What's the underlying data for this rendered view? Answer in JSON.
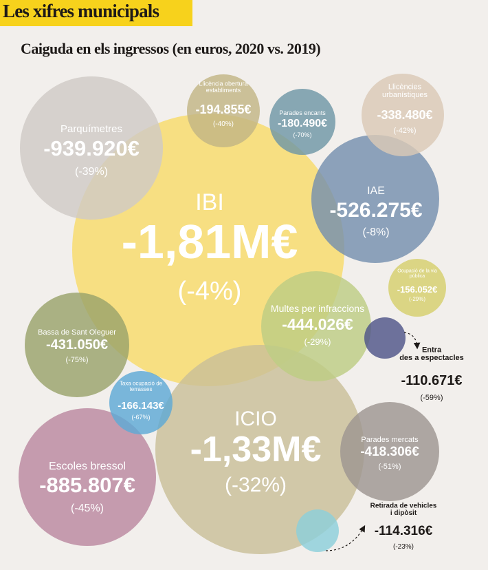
{
  "header": {
    "title": "Les xifres municipals",
    "accent": "#f7d21c"
  },
  "chart_data": {
    "type": "bubble",
    "title": "Caiguda en els ingressos (en euros, 2020 vs. 2019)",
    "series": [
      {
        "name": "IBI",
        "value": "-1,81M€",
        "change": "(-4%)",
        "color": "#f8dc6a",
        "text": "#ffffff"
      },
      {
        "name": "ICIO",
        "value": "-1,33M€",
        "change": "(-32%)",
        "color": "#c9bf98",
        "text": "#ffffff"
      },
      {
        "name": "Parquímetres",
        "value": "-939.920€",
        "change": "(-39%)",
        "color": "#cfcac6",
        "text": "#ffffff"
      },
      {
        "name": "Escoles bressol",
        "value": "-885.807€",
        "change": "(-45%)",
        "color": "#bb89a0",
        "text": "#ffffff"
      },
      {
        "name": "IAE",
        "value": "-526.275€",
        "change": "(-8%)",
        "color": "#7590ae",
        "text": "#ffffff"
      },
      {
        "name": "Multes per infraccions",
        "value": "-444.026€",
        "change": "(-29%)",
        "color": "#bdcd84",
        "text": "#ffffff"
      },
      {
        "name": "Bassa de Sant Oleguer",
        "value": "-431.050€",
        "change": "(-75%)",
        "color": "#9aa36b",
        "text": "#ffffff"
      },
      {
        "name": "Parades mercats",
        "value": "-418.306€",
        "change": "(-51%)",
        "color": "#9d9691",
        "text": "#ffffff"
      },
      {
        "name": "Llicències urbanístiques",
        "value": "-338.480€",
        "change": "(-42%)",
        "color": "#dbc9b6",
        "text": "#ffffff"
      },
      {
        "name": "Llicència obertura establiments",
        "value": "-194.855€",
        "change": "(-40%)",
        "color": "#c2b685",
        "text": "#ffffff"
      },
      {
        "name": "Parades encants",
        "value": "-180.490€",
        "change": "(-70%)",
        "color": "#6f97a6",
        "text": "#ffffff"
      },
      {
        "name": "Taxa ocupació de terrasses",
        "value": "-166.143€",
        "change": "(-67%)",
        "color": "#5ea9d6",
        "text": "#ffffff"
      },
      {
        "name": "Ocupació de la via pública",
        "value": "-156.052€",
        "change": "(-29%)",
        "color": "#d6cf6c",
        "text": "#ffffff"
      },
      {
        "name": "Entrades a espectacles",
        "value": "-110.671€",
        "change": "(-59%)",
        "color": "#4f5589",
        "text": "#1e1a18"
      },
      {
        "name": "Retirada de vehicles i dipòsit",
        "value": "-114.316€",
        "change": "(-23%)",
        "color": "#8ccfda",
        "text": "#1e1a18"
      }
    ]
  }
}
